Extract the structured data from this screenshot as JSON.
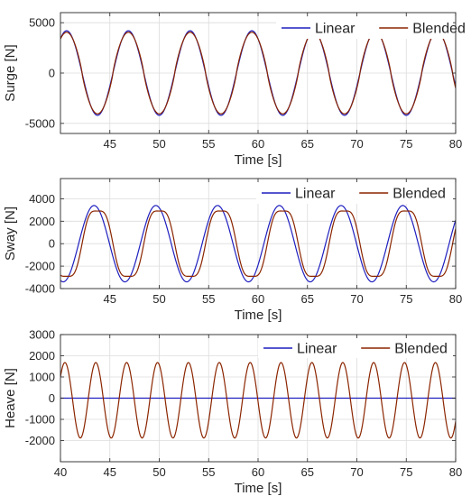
{
  "chart_data": [
    {
      "type": "line",
      "ylabel": "Surge [N]",
      "xlabel": "Time [s]",
      "xlim": [
        40,
        80
      ],
      "ylim": [
        -6000,
        6000
      ],
      "xticks": [
        45,
        50,
        55,
        60,
        65,
        70,
        75,
        80
      ],
      "yticks": [
        -5000,
        0,
        5000
      ],
      "ytick_labels": [
        "-5000",
        "0",
        "5000"
      ],
      "grid": true,
      "legend": "top-right",
      "series": [
        {
          "name": "Linear",
          "color": "#1f1fbf",
          "amplitude": 4200,
          "period": 6.25,
          "phase_deg": -90,
          "waveform": "sine"
        },
        {
          "name": "Blended",
          "color": "#8b2500",
          "amplitude": 4050,
          "period": 6.25,
          "phase_deg": -90,
          "waveform": "sine-flattened-crest"
        }
      ]
    },
    {
      "type": "line",
      "ylabel": "Sway [N]",
      "xlabel": "Time [s]",
      "xlim": [
        40,
        80
      ],
      "ylim": [
        -4000,
        5800
      ],
      "xticks": [
        45,
        50,
        55,
        60,
        65,
        70,
        75,
        80
      ],
      "yticks": [
        -4000,
        -2000,
        0,
        2000,
        4000
      ],
      "ytick_labels": [
        "-4000",
        "-2000",
        "0",
        "2000",
        "4000"
      ],
      "grid": true,
      "legend": "top-right",
      "series": [
        {
          "name": "Linear",
          "color": "#1f1fbf",
          "amplitude": 3400,
          "period": 6.25,
          "phase_deg": 110,
          "waveform": "sine"
        },
        {
          "name": "Blended",
          "color": "#8b2500",
          "amplitude": 3300,
          "period": 6.25,
          "phase_deg": 90,
          "waveform": "sine-with-shoulder"
        }
      ]
    },
    {
      "type": "line",
      "ylabel": "Heave [N]",
      "xlabel": "Time [s]",
      "xlim": [
        40,
        80
      ],
      "ylim": [
        -3000,
        3000
      ],
      "xticks": [
        40,
        45,
        50,
        55,
        60,
        65,
        70,
        75,
        80
      ],
      "yticks": [
        -2000,
        -1000,
        0,
        1000,
        2000,
        3000
      ],
      "ytick_labels": [
        "-2000",
        "-1000",
        "0",
        "1000",
        "2000",
        "3000"
      ],
      "grid": true,
      "legend": "top-right",
      "series": [
        {
          "name": "Linear",
          "color": "#1f1fbf",
          "amplitude": 0,
          "period": 3.125,
          "phase_deg": 0,
          "waveform": "sine"
        },
        {
          "name": "Blended",
          "color": "#8b2500",
          "amplitude": 1780,
          "period": 3.125,
          "phase_deg": 110,
          "offset": -100,
          "waveform": "sine"
        }
      ]
    }
  ]
}
